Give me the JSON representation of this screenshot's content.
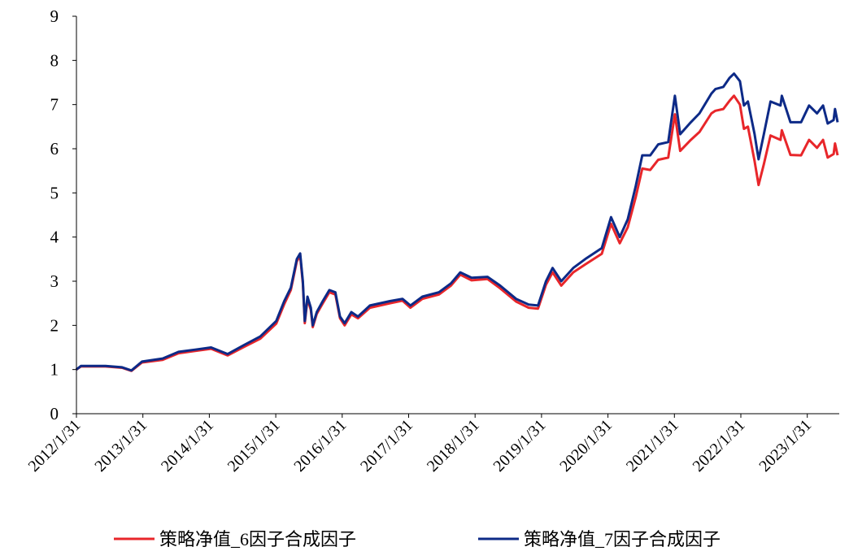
{
  "chart_data": {
    "type": "line",
    "title": "",
    "xlabel": "",
    "ylabel": "",
    "ylim": [
      0,
      9
    ],
    "yticks": [
      "0",
      "1",
      "2",
      "3",
      "4",
      "5",
      "6",
      "7",
      "8",
      "9"
    ],
    "xticks": [
      {
        "label": "2012/1/31",
        "year": 2012.083
      },
      {
        "label": "2013/1/31",
        "year": 2013.083
      },
      {
        "label": "2014/1/31",
        "year": 2014.083
      },
      {
        "label": "2015/1/31",
        "year": 2015.083
      },
      {
        "label": "2016/1/31",
        "year": 2016.083
      },
      {
        "label": "2017/1/31",
        "year": 2017.083
      },
      {
        "label": "2018/1/31",
        "year": 2018.083
      },
      {
        "label": "2019/1/31",
        "year": 2019.083
      },
      {
        "label": "2020/1/31",
        "year": 2020.083
      },
      {
        "label": "2021/1/31",
        "year": 2021.083
      },
      {
        "label": "2022/1/31",
        "year": 2022.083
      },
      {
        "label": "2023/1/31",
        "year": 2023.083
      }
    ],
    "grid": false,
    "legend_position": "bottom",
    "series": [
      {
        "name": "策略净值_6因子合成因子",
        "color": "#E8262A",
        "points": [
          [
            2012.08,
            1.0
          ],
          [
            2012.15,
            1.07
          ],
          [
            2012.52,
            1.07
          ],
          [
            2012.77,
            1.04
          ],
          [
            2012.91,
            0.97
          ],
          [
            2013.07,
            1.16
          ],
          [
            2013.38,
            1.22
          ],
          [
            2013.62,
            1.37
          ],
          [
            2013.87,
            1.42
          ],
          [
            2014.11,
            1.47
          ],
          [
            2014.36,
            1.32
          ],
          [
            2014.6,
            1.51
          ],
          [
            2014.85,
            1.7
          ],
          [
            2015.09,
            2.04
          ],
          [
            2015.21,
            2.48
          ],
          [
            2015.31,
            2.8
          ],
          [
            2015.4,
            3.45
          ],
          [
            2015.45,
            3.58
          ],
          [
            2015.49,
            2.95
          ],
          [
            2015.52,
            2.05
          ],
          [
            2015.56,
            2.6
          ],
          [
            2015.61,
            2.35
          ],
          [
            2015.64,
            1.96
          ],
          [
            2015.7,
            2.26
          ],
          [
            2015.79,
            2.5
          ],
          [
            2015.89,
            2.75
          ],
          [
            2015.98,
            2.7
          ],
          [
            2016.05,
            2.16
          ],
          [
            2016.12,
            2.0
          ],
          [
            2016.22,
            2.25
          ],
          [
            2016.32,
            2.16
          ],
          [
            2016.5,
            2.4
          ],
          [
            2016.8,
            2.5
          ],
          [
            2016.99,
            2.56
          ],
          [
            2017.11,
            2.4
          ],
          [
            2017.29,
            2.6
          ],
          [
            2017.54,
            2.7
          ],
          [
            2017.72,
            2.9
          ],
          [
            2017.86,
            3.15
          ],
          [
            2018.03,
            3.02
          ],
          [
            2018.27,
            3.05
          ],
          [
            2018.46,
            2.84
          ],
          [
            2018.7,
            2.54
          ],
          [
            2018.89,
            2.4
          ],
          [
            2019.03,
            2.38
          ],
          [
            2019.15,
            2.92
          ],
          [
            2019.25,
            3.2
          ],
          [
            2019.38,
            2.9
          ],
          [
            2019.56,
            3.2
          ],
          [
            2019.74,
            3.38
          ],
          [
            2019.99,
            3.62
          ],
          [
            2020.13,
            4.3
          ],
          [
            2020.26,
            3.86
          ],
          [
            2020.38,
            4.22
          ],
          [
            2020.5,
            4.9
          ],
          [
            2020.6,
            5.55
          ],
          [
            2020.72,
            5.52
          ],
          [
            2020.84,
            5.75
          ],
          [
            2020.99,
            5.8
          ],
          [
            2021.09,
            6.78
          ],
          [
            2021.17,
            5.95
          ],
          [
            2021.33,
            6.2
          ],
          [
            2021.46,
            6.38
          ],
          [
            2021.64,
            6.8
          ],
          [
            2021.7,
            6.86
          ],
          [
            2021.82,
            6.9
          ],
          [
            2021.91,
            7.08
          ],
          [
            2021.98,
            7.2
          ],
          [
            2022.07,
            7.0
          ],
          [
            2022.13,
            6.45
          ],
          [
            2022.19,
            6.5
          ],
          [
            2022.29,
            5.72
          ],
          [
            2022.35,
            5.18
          ],
          [
            2022.43,
            5.65
          ],
          [
            2022.53,
            6.3
          ],
          [
            2022.68,
            6.2
          ],
          [
            2022.7,
            6.42
          ],
          [
            2022.83,
            5.86
          ],
          [
            2022.99,
            5.85
          ],
          [
            2023.11,
            6.2
          ],
          [
            2023.23,
            6.02
          ],
          [
            2023.32,
            6.2
          ],
          [
            2023.39,
            5.8
          ],
          [
            2023.48,
            5.88
          ],
          [
            2023.5,
            6.12
          ],
          [
            2023.54,
            5.85
          ]
        ]
      },
      {
        "name": "策略净值_7因子合成因子",
        "color": "#0D2A87",
        "points": [
          [
            2012.08,
            1.0
          ],
          [
            2012.15,
            1.08
          ],
          [
            2012.52,
            1.08
          ],
          [
            2012.77,
            1.05
          ],
          [
            2012.91,
            0.98
          ],
          [
            2013.07,
            1.18
          ],
          [
            2013.38,
            1.25
          ],
          [
            2013.62,
            1.4
          ],
          [
            2013.87,
            1.45
          ],
          [
            2014.11,
            1.5
          ],
          [
            2014.36,
            1.35
          ],
          [
            2014.6,
            1.55
          ],
          [
            2014.85,
            1.75
          ],
          [
            2015.09,
            2.1
          ],
          [
            2015.21,
            2.55
          ],
          [
            2015.31,
            2.85
          ],
          [
            2015.4,
            3.5
          ],
          [
            2015.45,
            3.63
          ],
          [
            2015.49,
            3.0
          ],
          [
            2015.52,
            2.1
          ],
          [
            2015.56,
            2.65
          ],
          [
            2015.61,
            2.4
          ],
          [
            2015.64,
            2.0
          ],
          [
            2015.7,
            2.3
          ],
          [
            2015.79,
            2.55
          ],
          [
            2015.89,
            2.8
          ],
          [
            2015.98,
            2.75
          ],
          [
            2016.05,
            2.2
          ],
          [
            2016.12,
            2.05
          ],
          [
            2016.22,
            2.3
          ],
          [
            2016.32,
            2.2
          ],
          [
            2016.5,
            2.45
          ],
          [
            2016.8,
            2.55
          ],
          [
            2016.99,
            2.6
          ],
          [
            2017.11,
            2.45
          ],
          [
            2017.29,
            2.65
          ],
          [
            2017.54,
            2.75
          ],
          [
            2017.72,
            2.95
          ],
          [
            2017.86,
            3.2
          ],
          [
            2018.03,
            3.08
          ],
          [
            2018.27,
            3.1
          ],
          [
            2018.46,
            2.9
          ],
          [
            2018.7,
            2.6
          ],
          [
            2018.89,
            2.47
          ],
          [
            2019.03,
            2.45
          ],
          [
            2019.15,
            3.0
          ],
          [
            2019.25,
            3.3
          ],
          [
            2019.38,
            3.0
          ],
          [
            2019.56,
            3.3
          ],
          [
            2019.74,
            3.5
          ],
          [
            2019.99,
            3.75
          ],
          [
            2020.13,
            4.45
          ],
          [
            2020.26,
            4.0
          ],
          [
            2020.38,
            4.4
          ],
          [
            2020.5,
            5.15
          ],
          [
            2020.6,
            5.85
          ],
          [
            2020.72,
            5.85
          ],
          [
            2020.84,
            6.1
          ],
          [
            2020.99,
            6.15
          ],
          [
            2021.09,
            7.2
          ],
          [
            2021.17,
            6.33
          ],
          [
            2021.33,
            6.6
          ],
          [
            2021.46,
            6.8
          ],
          [
            2021.64,
            7.25
          ],
          [
            2021.7,
            7.35
          ],
          [
            2021.82,
            7.4
          ],
          [
            2021.91,
            7.6
          ],
          [
            2021.98,
            7.7
          ],
          [
            2022.07,
            7.53
          ],
          [
            2022.13,
            6.98
          ],
          [
            2022.19,
            7.07
          ],
          [
            2022.29,
            6.33
          ],
          [
            2022.35,
            5.76
          ],
          [
            2022.43,
            6.33
          ],
          [
            2022.53,
            7.07
          ],
          [
            2022.68,
            6.98
          ],
          [
            2022.7,
            7.2
          ],
          [
            2022.83,
            6.6
          ],
          [
            2022.99,
            6.6
          ],
          [
            2023.11,
            6.98
          ],
          [
            2023.23,
            6.8
          ],
          [
            2023.32,
            6.98
          ],
          [
            2023.39,
            6.57
          ],
          [
            2023.48,
            6.65
          ],
          [
            2023.5,
            6.9
          ],
          [
            2023.54,
            6.6
          ]
        ]
      }
    ]
  }
}
